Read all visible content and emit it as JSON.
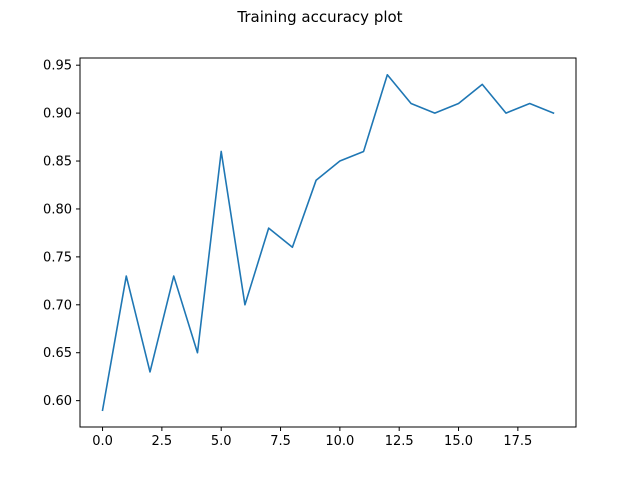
{
  "chart_data": {
    "type": "line",
    "title": "Training accuracy plot",
    "xlabel": "",
    "ylabel": "",
    "xlim": [
      -0.95,
      19.95
    ],
    "ylim": [
      0.5725,
      0.9575
    ],
    "x_ticks": [
      0.0,
      2.5,
      5.0,
      7.5,
      10.0,
      12.5,
      15.0,
      17.5
    ],
    "x_tick_labels": [
      "0.0",
      "2.5",
      "5.0",
      "7.5",
      "10.0",
      "12.5",
      "15.0",
      "17.5"
    ],
    "y_ticks": [
      0.6,
      0.65,
      0.7,
      0.75,
      0.8,
      0.85,
      0.9,
      0.95
    ],
    "y_tick_labels": [
      "0.60",
      "0.65",
      "0.70",
      "0.75",
      "0.80",
      "0.85",
      "0.90",
      "0.95"
    ],
    "grid": false,
    "series": [
      {
        "color": "#1f77b4",
        "x": [
          0,
          1,
          2,
          3,
          4,
          5,
          6,
          7,
          8,
          9,
          10,
          11,
          12,
          13,
          14,
          15,
          16,
          17,
          18,
          19
        ],
        "values": [
          0.59,
          0.73,
          0.63,
          0.73,
          0.65,
          0.86,
          0.7,
          0.78,
          0.76,
          0.83,
          0.85,
          0.86,
          0.94,
          0.91,
          0.9,
          0.91,
          0.93,
          0.9,
          0.91,
          0.9
        ]
      }
    ]
  }
}
